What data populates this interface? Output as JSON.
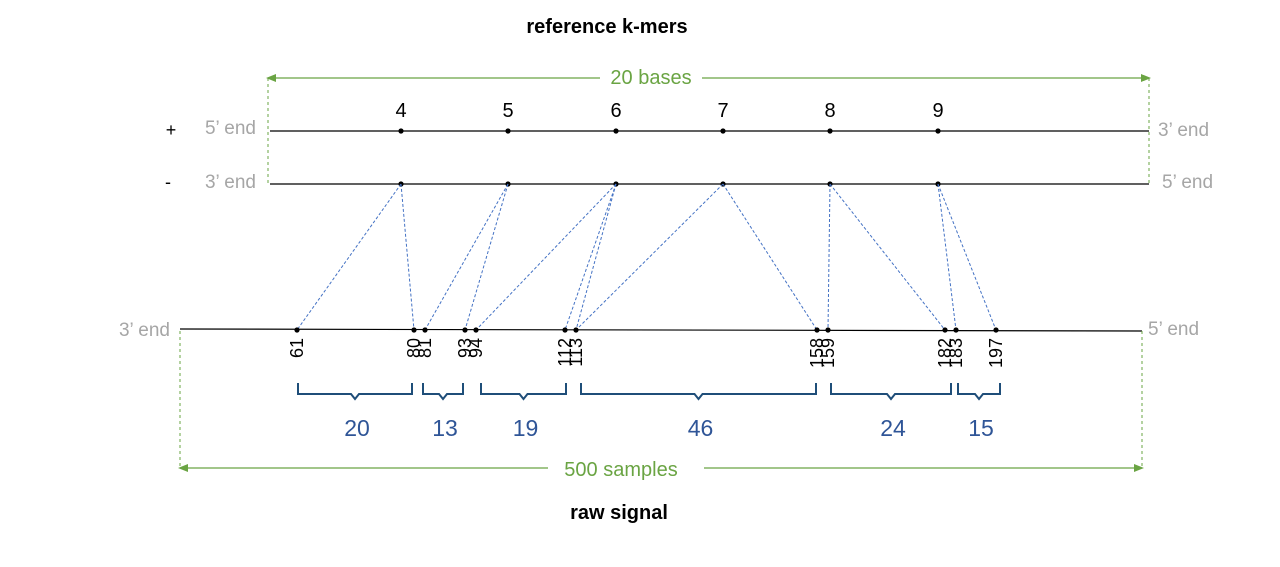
{
  "title": "reference k-mers",
  "footer": "raw signal",
  "reference": {
    "plus_sign": "+",
    "minus_sign": "-",
    "plus_left": "5’ end",
    "plus_right": "3’ end",
    "minus_left": "3’ end",
    "minus_right": "5’ end",
    "span_label": "20 bases",
    "kmers": [
      "4",
      "5",
      "6",
      "7",
      "8",
      "9"
    ]
  },
  "signal": {
    "left": "3’ end",
    "right": "5’ end",
    "span_label": "500 samples",
    "samples": [
      "61",
      "80",
      "81",
      "93",
      "94",
      "112",
      "113",
      "158",
      "159",
      "182",
      "183",
      "197"
    ]
  },
  "dwell": [
    "20",
    "13",
    "19",
    "46",
    "24",
    "15"
  ],
  "mapping": [
    {
      "kmer": 0,
      "sample": 0
    },
    {
      "kmer": 0,
      "sample": 1
    },
    {
      "kmer": 1,
      "sample": 2
    },
    {
      "kmer": 1,
      "sample": 3
    },
    {
      "kmer": 2,
      "sample": 4
    },
    {
      "kmer": 2,
      "sample": 5
    },
    {
      "kmer": 2,
      "sample": 6
    },
    {
      "kmer": 3,
      "sample": 6
    },
    {
      "kmer": 3,
      "sample": 7
    },
    {
      "kmer": 4,
      "sample": 8
    },
    {
      "kmer": 4,
      "sample": 9
    },
    {
      "kmer": 5,
      "sample": 10
    },
    {
      "kmer": 5,
      "sample": 11
    }
  ],
  "brace_ranges": [
    [
      0,
      1
    ],
    [
      2,
      3
    ],
    [
      4,
      5
    ],
    [
      6,
      7
    ],
    [
      8,
      9
    ],
    [
      10,
      11
    ]
  ],
  "colors": {
    "dimension": "#6aa443",
    "mapping": "#4472c4",
    "dwell": "#2f5597",
    "end_label": "#a6a6a6"
  }
}
